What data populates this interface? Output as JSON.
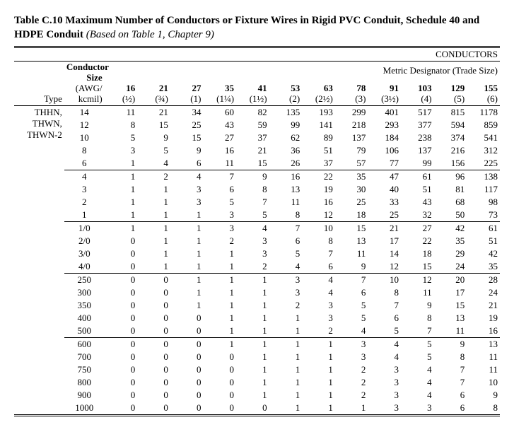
{
  "title": {
    "table_no": "Table C.10",
    "main": "Maximum Number of Conductors or Fixture Wires in Rigid PVC Conduit, Schedule 40 and HDPE Conduit",
    "basis": "(Based on Table 1, Chapter 9)"
  },
  "headers": {
    "conductors": "CONDUCTORS",
    "conductor_size": "Conductor Size (AWG/ kcmil)",
    "type": "Type",
    "metric": "Metric Designator (Trade Size)"
  },
  "trade_sizes": [
    {
      "metric": "16",
      "trade": "(½)"
    },
    {
      "metric": "21",
      "trade": "(¾)"
    },
    {
      "metric": "27",
      "trade": "(1)"
    },
    {
      "metric": "35",
      "trade": "(1¼)"
    },
    {
      "metric": "41",
      "trade": "(1½)"
    },
    {
      "metric": "53",
      "trade": "(2)"
    },
    {
      "metric": "63",
      "trade": "(2½)"
    },
    {
      "metric": "78",
      "trade": "(3)"
    },
    {
      "metric": "91",
      "trade": "(3½)"
    },
    {
      "metric": "103",
      "trade": "(4)"
    },
    {
      "metric": "129",
      "trade": "(5)"
    },
    {
      "metric": "155",
      "trade": "(6)"
    }
  ],
  "wire_type_lines": [
    "THHN,",
    "THWN,",
    "THWN-2"
  ],
  "groups": [
    {
      "rows": [
        {
          "size": "14",
          "vals": [
            11,
            21,
            34,
            60,
            82,
            135,
            193,
            299,
            401,
            517,
            815,
            1178
          ]
        },
        {
          "size": "12",
          "vals": [
            8,
            15,
            25,
            43,
            59,
            99,
            141,
            218,
            293,
            377,
            594,
            859
          ]
        },
        {
          "size": "10",
          "vals": [
            5,
            9,
            15,
            27,
            37,
            62,
            89,
            137,
            184,
            238,
            374,
            541
          ]
        },
        {
          "size": "8",
          "vals": [
            3,
            5,
            9,
            16,
            21,
            36,
            51,
            79,
            106,
            137,
            216,
            312
          ]
        },
        {
          "size": "6",
          "vals": [
            1,
            4,
            6,
            11,
            15,
            26,
            37,
            57,
            77,
            99,
            156,
            225
          ]
        }
      ]
    },
    {
      "rows": [
        {
          "size": "4",
          "vals": [
            1,
            2,
            4,
            7,
            9,
            16,
            22,
            35,
            47,
            61,
            96,
            138
          ]
        },
        {
          "size": "3",
          "vals": [
            1,
            1,
            3,
            6,
            8,
            13,
            19,
            30,
            40,
            51,
            81,
            117
          ]
        },
        {
          "size": "2",
          "vals": [
            1,
            1,
            3,
            5,
            7,
            11,
            16,
            25,
            33,
            43,
            68,
            98
          ]
        },
        {
          "size": "1",
          "vals": [
            1,
            1,
            1,
            3,
            5,
            8,
            12,
            18,
            25,
            32,
            50,
            73
          ]
        }
      ]
    },
    {
      "rows": [
        {
          "size": "1/0",
          "vals": [
            1,
            1,
            1,
            3,
            4,
            7,
            10,
            15,
            21,
            27,
            42,
            61
          ]
        },
        {
          "size": "2/0",
          "vals": [
            0,
            1,
            1,
            2,
            3,
            6,
            8,
            13,
            17,
            22,
            35,
            51
          ]
        },
        {
          "size": "3/0",
          "vals": [
            0,
            1,
            1,
            1,
            3,
            5,
            7,
            11,
            14,
            18,
            29,
            42
          ]
        },
        {
          "size": "4/0",
          "vals": [
            0,
            1,
            1,
            1,
            2,
            4,
            6,
            9,
            12,
            15,
            24,
            35
          ]
        }
      ]
    },
    {
      "rows": [
        {
          "size": "250",
          "vals": [
            0,
            0,
            1,
            1,
            1,
            3,
            4,
            7,
            10,
            12,
            20,
            28
          ]
        },
        {
          "size": "300",
          "vals": [
            0,
            0,
            1,
            1,
            1,
            3,
            4,
            6,
            8,
            11,
            17,
            24
          ]
        },
        {
          "size": "350",
          "vals": [
            0,
            0,
            1,
            1,
            1,
            2,
            3,
            5,
            7,
            9,
            15,
            21
          ]
        },
        {
          "size": "400",
          "vals": [
            0,
            0,
            0,
            1,
            1,
            1,
            3,
            5,
            6,
            8,
            13,
            19
          ]
        },
        {
          "size": "500",
          "vals": [
            0,
            0,
            0,
            1,
            1,
            1,
            2,
            4,
            5,
            7,
            11,
            16
          ]
        }
      ]
    },
    {
      "rows": [
        {
          "size": "600",
          "vals": [
            0,
            0,
            0,
            1,
            1,
            1,
            1,
            3,
            4,
            5,
            9,
            13
          ]
        },
        {
          "size": "700",
          "vals": [
            0,
            0,
            0,
            0,
            1,
            1,
            1,
            3,
            4,
            5,
            8,
            11
          ]
        },
        {
          "size": "750",
          "vals": [
            0,
            0,
            0,
            0,
            1,
            1,
            1,
            2,
            3,
            4,
            7,
            11
          ]
        },
        {
          "size": "800",
          "vals": [
            0,
            0,
            0,
            0,
            1,
            1,
            1,
            2,
            3,
            4,
            7,
            10
          ]
        },
        {
          "size": "900",
          "vals": [
            0,
            0,
            0,
            0,
            1,
            1,
            1,
            2,
            3,
            4,
            6,
            9
          ]
        },
        {
          "size": "1000",
          "vals": [
            0,
            0,
            0,
            0,
            0,
            1,
            1,
            1,
            3,
            3,
            6,
            8
          ]
        }
      ]
    }
  ],
  "total_rows": 24
}
